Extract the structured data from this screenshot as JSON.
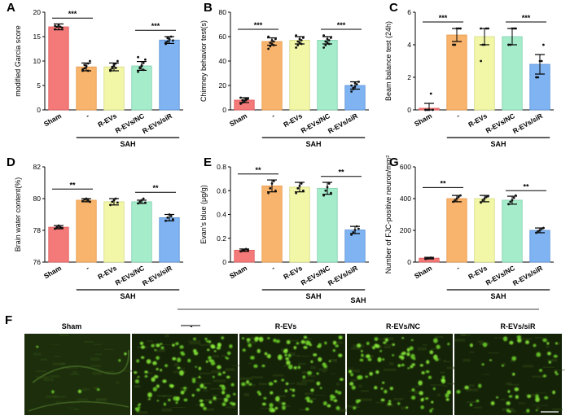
{
  "colors": {
    "Sham": "#f47a7a",
    "-": "#f8b46c",
    "R-EVs": "#f2f7a8",
    "R-EVs/NC": "#a5eccb",
    "R-EVs/siR": "#7fb3f2",
    "Sham_stroke": "#e05858",
    "-_stroke": "#e8984a",
    "R-EVs_stroke": "#d6dc80",
    "R-EVs/NC_stroke": "#7fd0ae",
    "R-EVs/siR_stroke": "#5a92d8",
    "dots": "#111111"
  },
  "shared": {
    "categories": [
      "Sham",
      "-",
      "R-EVs",
      "R-EVs/NC",
      "R-EVs/siR"
    ],
    "group_label": "SAH"
  },
  "chart_data": [
    {
      "panel": "A",
      "type": "bar",
      "categories": [
        "Sham",
        "-",
        "R-EVs",
        "R-EVs/NC",
        "R-EVs/siR"
      ],
      "values": [
        17.0,
        8.8,
        8.8,
        9.0,
        14.3
      ],
      "errors": [
        0.6,
        0.8,
        0.8,
        0.9,
        0.7
      ],
      "points": [
        [
          16.5,
          17,
          17.3,
          17,
          16.8,
          17.2
        ],
        [
          8,
          8.5,
          9,
          9.5,
          10,
          8.3,
          9.2,
          8.8,
          8
        ],
        [
          8,
          8.5,
          9,
          9.5,
          10,
          8.2,
          8.8,
          9.3,
          8.6
        ],
        [
          7.8,
          8.5,
          9,
          9.6,
          10.3,
          10.8,
          8.7,
          9.1,
          8.2
        ],
        [
          13.5,
          14,
          14.5,
          15,
          14.2,
          13.8,
          14.7,
          14.4
        ]
      ],
      "ylabel": "modified Garcia score",
      "ylim": [
        0,
        20
      ],
      "yticks": [
        0,
        5,
        10,
        15,
        20
      ],
      "sig": [
        {
          "from": 0,
          "to": 1,
          "label": "***",
          "y": 18.8
        },
        {
          "from": 3,
          "to": 4,
          "label": "***",
          "y": 16.3
        }
      ]
    },
    {
      "panel": "B",
      "type": "bar",
      "categories": [
        "Sham",
        "-",
        "R-EVs",
        "R-EVs/NC",
        "R-EVs/siR"
      ],
      "values": [
        8,
        56,
        57,
        57,
        20
      ],
      "errors": [
        2,
        3,
        3,
        3,
        3
      ],
      "points": [
        [
          5,
          6,
          7,
          8,
          9,
          10,
          8,
          7,
          9
        ],
        [
          50,
          52,
          54,
          56,
          58,
          60,
          55,
          57,
          53
        ],
        [
          51,
          53,
          55,
          57,
          59,
          61,
          56,
          58,
          54
        ],
        [
          51,
          53,
          55,
          57,
          59,
          61,
          56,
          58,
          54
        ],
        [
          15,
          17,
          19,
          21,
          23,
          20,
          18,
          22
        ]
      ],
      "ylabel": "Chimney behavior test(s)",
      "ylim": [
        0,
        80
      ],
      "yticks": [
        0,
        20,
        40,
        60,
        80
      ],
      "sig": [
        {
          "from": 0,
          "to": 1,
          "label": "***",
          "y": 66
        },
        {
          "from": 3,
          "to": 4,
          "label": "***",
          "y": 66
        }
      ]
    },
    {
      "panel": "C",
      "type": "bar",
      "categories": [
        "Sham",
        "-",
        "R-EVs",
        "R-EVs/NC",
        "R-EVs/siR"
      ],
      "values": [
        0.1,
        4.6,
        4.5,
        4.5,
        2.8
      ],
      "errors": [
        0.3,
        0.4,
        0.5,
        0.5,
        0.6
      ],
      "points": [
        [
          0,
          0,
          0,
          1,
          0,
          0
        ],
        [
          4,
          4,
          5,
          5,
          5,
          4
        ],
        [
          3,
          4,
          4,
          5,
          5,
          5
        ],
        [
          4,
          4,
          5,
          5,
          5,
          4
        ],
        [
          2,
          2,
          3,
          3,
          4,
          2
        ]
      ],
      "ylabel": "Beam balance test (24h)",
      "ylim": [
        0,
        6
      ],
      "yticks": [
        0,
        2,
        4,
        6
      ],
      "sig": [
        {
          "from": 0,
          "to": 1,
          "label": "***",
          "y": 5.4
        },
        {
          "from": 3,
          "to": 4,
          "label": "***",
          "y": 5.4
        }
      ]
    },
    {
      "panel": "D",
      "type": "bar",
      "categories": [
        "Sham",
        "-",
        "R-EVs",
        "R-EVs/NC",
        "R-EVs/siR"
      ],
      "values": [
        78.2,
        79.9,
        79.8,
        79.8,
        78.8
      ],
      "errors": [
        0.1,
        0.1,
        0.2,
        0.1,
        0.2
      ],
      "points": [
        [
          78.1,
          78.2,
          78.3,
          78.2,
          78.15
        ],
        [
          79.85,
          79.95,
          80.0,
          79.9,
          79.8
        ],
        [
          79.6,
          79.8,
          79.9,
          80.0,
          79.75
        ],
        [
          79.7,
          79.8,
          79.9,
          80.0,
          79.75
        ],
        [
          78.6,
          78.8,
          79.0,
          78.9,
          78.7
        ]
      ],
      "ylabel": "Brain water content(%)",
      "ylim": [
        76,
        82
      ],
      "yticks": [
        76,
        78,
        80,
        82
      ],
      "sig": [
        {
          "from": 0,
          "to": 1,
          "label": "**",
          "y": 80.6
        },
        {
          "from": 3,
          "to": 4,
          "label": "**",
          "y": 80.4
        }
      ]
    },
    {
      "panel": "E",
      "type": "bar",
      "categories": [
        "Sham",
        "-",
        "R-EVs",
        "R-EVs/NC",
        "R-EVs/siR"
      ],
      "values": [
        0.1,
        0.64,
        0.63,
        0.62,
        0.27
      ],
      "errors": [
        0.01,
        0.05,
        0.04,
        0.05,
        0.03
      ],
      "points": [
        [
          0.09,
          0.1,
          0.1,
          0.11,
          0.1
        ],
        [
          0.58,
          0.62,
          0.66,
          0.68,
          0.6
        ],
        [
          0.58,
          0.62,
          0.64,
          0.66,
          0.6
        ],
        [
          0.56,
          0.6,
          0.63,
          0.66,
          0.58
        ],
        [
          0.23,
          0.25,
          0.27,
          0.3,
          0.28
        ]
      ],
      "ylabel": "Evan's blue (μg/g)",
      "ylim": [
        0,
        0.8
      ],
      "yticks": [
        0.0,
        0.2,
        0.4,
        0.6,
        0.8
      ],
      "sig": [
        {
          "from": 0,
          "to": 1,
          "label": "**",
          "y": 0.74
        },
        {
          "from": 3,
          "to": 4,
          "label": "**",
          "y": 0.72
        }
      ]
    },
    {
      "panel": "G",
      "type": "bar",
      "categories": [
        "Sham",
        "-",
        "R-EVs",
        "R-EVs/NC",
        "R-EVs/siR"
      ],
      "values": [
        25,
        400,
        400,
        390,
        200
      ],
      "errors": [
        5,
        20,
        20,
        25,
        15
      ],
      "points": [
        [
          20,
          22,
          25,
          28,
          24
        ],
        [
          380,
          390,
          400,
          410,
          420
        ],
        [
          375,
          390,
          400,
          410,
          415
        ],
        [
          365,
          380,
          390,
          405,
          420
        ],
        [
          185,
          195,
          200,
          210,
          215
        ]
      ],
      "ylabel": "Number of FJC-positive neuron/mm²",
      "ylim": [
        0,
        600
      ],
      "yticks": [
        0,
        200,
        400,
        600
      ],
      "sig": [
        {
          "from": 0,
          "to": 1,
          "label": "**",
          "y": 470
        },
        {
          "from": 3,
          "to": 4,
          "label": "**",
          "y": 450
        }
      ]
    }
  ],
  "micrographs": {
    "panel": "F",
    "group_label": "SAH",
    "labels": [
      "Sham",
      "-",
      "R-EVs",
      "R-EVs/NC",
      "R-EVs/siR"
    ]
  }
}
